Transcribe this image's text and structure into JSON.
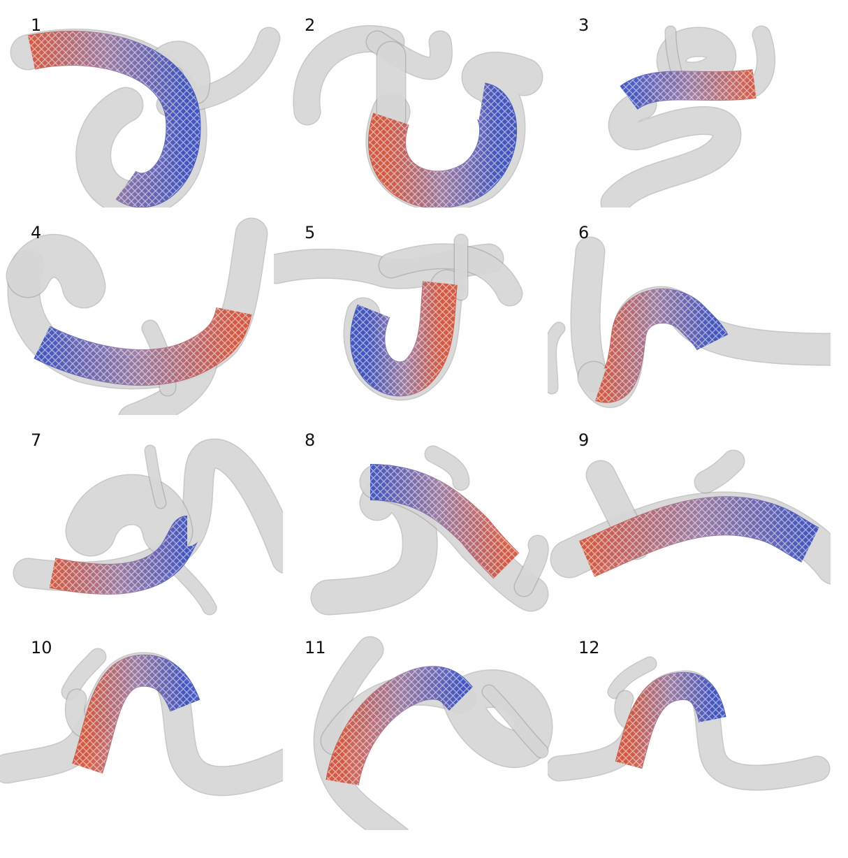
{
  "figure": {
    "panels": [
      {
        "label": "1"
      },
      {
        "label": "2"
      },
      {
        "label": "3"
      },
      {
        "label": "4"
      },
      {
        "label": "5"
      },
      {
        "label": "6"
      },
      {
        "label": "7"
      },
      {
        "label": "8"
      },
      {
        "label": "9"
      },
      {
        "label": "10"
      },
      {
        "label": "11"
      },
      {
        "label": "12"
      }
    ]
  },
  "colors": {
    "vessel_fill": "#dcdcdc",
    "vessel_edge": "#9a9a9a",
    "stent_red": "#d0442a",
    "stent_blue": "#2a3fb8",
    "stent_mid": "#8f6a98"
  }
}
